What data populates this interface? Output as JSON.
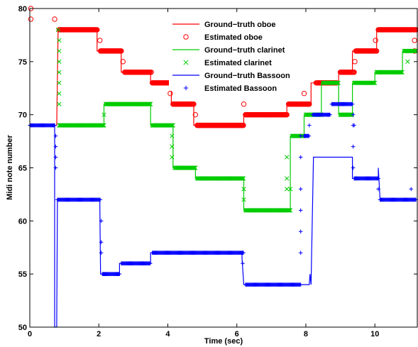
{
  "chart_data": {
    "type": "line",
    "xlabel": "Time (sec)",
    "ylabel": "Midi note number",
    "xlim": [
      0,
      11.25
    ],
    "ylim": [
      50,
      80
    ],
    "xticks": [
      0,
      2,
      4,
      6,
      8,
      10
    ],
    "yticks": [
      50,
      55,
      60,
      65,
      70,
      75,
      80
    ],
    "grid": false,
    "legend_position": "top-center",
    "colors": {
      "oboe": "#ff0000",
      "clarinet": "#00cc00",
      "bassoon": "#0000ff"
    },
    "series": [
      {
        "name": "Ground−truth oboe",
        "kind": "line",
        "color": "#ff0000",
        "points": [
          [
            0,
            69
          ],
          [
            0.78,
            69
          ],
          [
            0.82,
            78
          ],
          [
            1.95,
            78
          ],
          [
            1.95,
            76
          ],
          [
            2.65,
            76
          ],
          [
            2.65,
            74
          ],
          [
            3.5,
            74
          ],
          [
            3.5,
            73
          ],
          [
            4.1,
            73
          ],
          [
            4.1,
            71
          ],
          [
            4.75,
            71
          ],
          [
            4.75,
            69
          ],
          [
            6.2,
            69
          ],
          [
            6.2,
            70
          ],
          [
            7.45,
            70
          ],
          [
            7.45,
            71
          ],
          [
            8.15,
            71
          ],
          [
            8.15,
            73
          ],
          [
            8.95,
            73
          ],
          [
            8.95,
            74
          ],
          [
            9.35,
            74
          ],
          [
            9.35,
            76
          ],
          [
            10.05,
            76
          ],
          [
            10.05,
            78
          ],
          [
            11.2,
            78
          ]
        ]
      },
      {
        "name": "Estimated oboe",
        "kind": "markers",
        "marker": "circle",
        "color": "#ff0000",
        "segments": [
          [
            0.85,
            1.95,
            78
          ],
          [
            2.05,
            2.65,
            76
          ],
          [
            2.75,
            3.5,
            74
          ],
          [
            3.55,
            4.1,
            73
          ],
          [
            4.15,
            4.75,
            71
          ],
          [
            4.85,
            6.2,
            69
          ],
          [
            6.25,
            7.45,
            70
          ],
          [
            7.5,
            8.1,
            71
          ],
          [
            8.3,
            8.9,
            73
          ],
          [
            9.0,
            9.4,
            74
          ],
          [
            9.45,
            10.05,
            76
          ],
          [
            10.1,
            11.2,
            78
          ]
        ],
        "extra": [
          [
            0.03,
            80
          ],
          [
            0.03,
            79
          ],
          [
            0.72,
            79
          ],
          [
            0.9,
            78
          ],
          [
            2.03,
            77
          ],
          [
            2.7,
            75
          ],
          [
            3.52,
            74
          ],
          [
            4.07,
            72
          ],
          [
            4.8,
            70
          ],
          [
            6.2,
            71
          ],
          [
            7.95,
            72
          ],
          [
            9.42,
            75
          ],
          [
            10.02,
            77
          ],
          [
            11.15,
            77
          ],
          [
            11.15,
            76
          ]
        ]
      },
      {
        "name": "Ground−truth clarinet",
        "kind": "line",
        "color": "#00cc00",
        "points": [
          [
            0.85,
            69
          ],
          [
            2.15,
            69
          ],
          [
            2.15,
            71
          ],
          [
            3.5,
            71
          ],
          [
            3.5,
            69
          ],
          [
            4.15,
            69
          ],
          [
            4.15,
            65
          ],
          [
            4.8,
            65
          ],
          [
            4.8,
            64
          ],
          [
            6.2,
            64
          ],
          [
            6.2,
            61
          ],
          [
            7.55,
            61
          ],
          [
            7.55,
            68
          ],
          [
            7.95,
            68
          ],
          [
            7.95,
            70
          ],
          [
            8.45,
            70
          ],
          [
            8.45,
            73
          ],
          [
            8.95,
            73
          ],
          [
            8.95,
            70
          ],
          [
            9.35,
            70
          ],
          [
            9.35,
            73
          ],
          [
            10.0,
            73
          ],
          [
            10.0,
            74
          ],
          [
            10.8,
            74
          ],
          [
            10.8,
            76
          ],
          [
            11.2,
            76
          ]
        ]
      },
      {
        "name": "Estimated clarinet",
        "kind": "markers",
        "marker": "x",
        "color": "#00cc00",
        "segments": [
          [
            0.85,
            2.15,
            69
          ],
          [
            2.2,
            3.5,
            71
          ],
          [
            3.55,
            4.15,
            69
          ],
          [
            4.2,
            4.8,
            65
          ],
          [
            4.85,
            6.2,
            64
          ],
          [
            6.25,
            7.55,
            61
          ],
          [
            7.6,
            7.95,
            68
          ],
          [
            8.0,
            8.45,
            70
          ],
          [
            8.5,
            8.95,
            73
          ],
          [
            9.0,
            9.35,
            70
          ],
          [
            9.4,
            10.0,
            73
          ],
          [
            10.05,
            10.8,
            74
          ],
          [
            10.85,
            11.2,
            76
          ]
        ],
        "extra": [
          [
            0.82,
            78
          ],
          [
            0.85,
            77
          ],
          [
            0.85,
            76
          ],
          [
            0.85,
            75
          ],
          [
            0.85,
            74
          ],
          [
            0.85,
            73
          ],
          [
            0.85,
            72
          ],
          [
            0.85,
            71
          ],
          [
            2.15,
            70
          ],
          [
            4.12,
            68
          ],
          [
            4.12,
            67
          ],
          [
            4.12,
            66
          ],
          [
            6.2,
            63
          ],
          [
            6.2,
            62
          ],
          [
            7.45,
            66
          ],
          [
            7.45,
            64
          ],
          [
            7.45,
            63
          ],
          [
            7.55,
            63
          ],
          [
            8.45,
            70
          ],
          [
            10.95,
            75
          ]
        ]
      },
      {
        "name": "Ground−truth Bassoon",
        "kind": "line",
        "color": "#0000ff",
        "points": [
          [
            0,
            69
          ],
          [
            0.72,
            69
          ],
          [
            0.72,
            50
          ],
          [
            0.78,
            50
          ],
          [
            0.8,
            62
          ],
          [
            2.03,
            62
          ],
          [
            2.03,
            61.3
          ],
          [
            2.05,
            55
          ],
          [
            2.6,
            55
          ],
          [
            2.6,
            56
          ],
          [
            3.5,
            56
          ],
          [
            3.5,
            57
          ],
          [
            6.15,
            57
          ],
          [
            6.15,
            56.5
          ],
          [
            6.2,
            54
          ],
          [
            7.85,
            54
          ],
          [
            7.85,
            54
          ],
          [
            8.1,
            54
          ],
          [
            8.12,
            55
          ],
          [
            8.15,
            54
          ],
          [
            8.22,
            66
          ],
          [
            9.35,
            66
          ],
          [
            9.35,
            64
          ],
          [
            10.1,
            64
          ],
          [
            10.1,
            65
          ],
          [
            10.15,
            62
          ],
          [
            11.2,
            62
          ]
        ]
      },
      {
        "name": "Estimated Bassoon",
        "kind": "markers",
        "marker": "plus",
        "color": "#0000ff",
        "segments": [
          [
            0,
            0.72,
            69
          ],
          [
            0.8,
            2.05,
            62
          ],
          [
            2.1,
            2.6,
            55
          ],
          [
            2.65,
            3.5,
            56
          ],
          [
            3.55,
            6.2,
            57
          ],
          [
            6.25,
            7.85,
            54
          ],
          [
            7.95,
            8.1,
            68
          ],
          [
            8.2,
            8.7,
            70
          ],
          [
            8.75,
            9.35,
            71
          ],
          [
            9.4,
            10.1,
            64
          ],
          [
            10.15,
            11.2,
            62
          ]
        ],
        "extra": [
          [
            0.75,
            68
          ],
          [
            0.75,
            67
          ],
          [
            0.75,
            66
          ],
          [
            0.75,
            65
          ],
          [
            2.07,
            60
          ],
          [
            2.07,
            58
          ],
          [
            2.07,
            57
          ],
          [
            6.17,
            56
          ],
          [
            7.85,
            68
          ],
          [
            7.85,
            66
          ],
          [
            7.85,
            63
          ],
          [
            7.85,
            61
          ],
          [
            7.85,
            59
          ],
          [
            7.85,
            57
          ],
          [
            8.1,
            69
          ],
          [
            9.37,
            70
          ],
          [
            9.37,
            69
          ],
          [
            9.37,
            67
          ],
          [
            9.37,
            65
          ],
          [
            9.4,
            69
          ],
          [
            10.1,
            63
          ],
          [
            11.05,
            63
          ]
        ]
      }
    ]
  }
}
